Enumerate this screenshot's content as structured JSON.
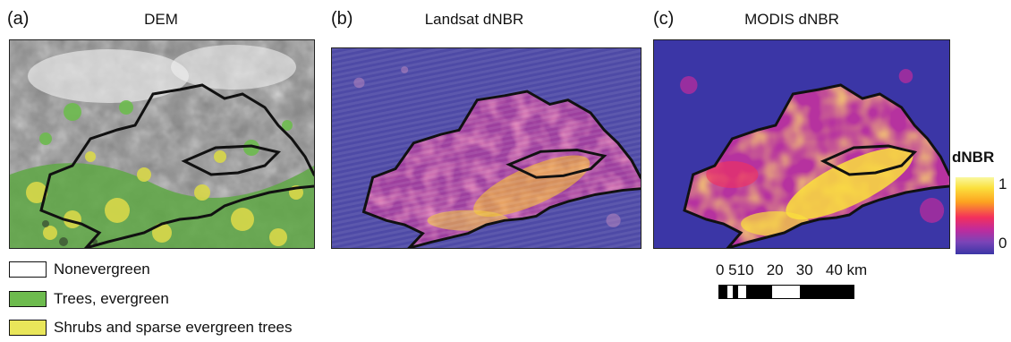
{
  "panels": [
    {
      "letter": "(a)",
      "title": "DEM"
    },
    {
      "letter": "(b)",
      "title": "Landsat dNBR"
    },
    {
      "letter": "(c)",
      "title": "MODIS dNBR"
    }
  ],
  "legend": {
    "items": [
      {
        "label": "Nonevergreen",
        "color": "#ffffff"
      },
      {
        "label": "Trees, evergreen",
        "color": "#6dbb4e"
      },
      {
        "label": "Shrubs and sparse evergreen trees",
        "color": "#e9e65a"
      }
    ]
  },
  "colorbar": {
    "title": "dNBR",
    "max_label": "1",
    "min_label": "0",
    "colors": [
      "#f9f8a0",
      "#fca320",
      "#f3305c",
      "#c02b9c",
      "#7b44b8",
      "#3b36a6"
    ]
  },
  "scale_bar": {
    "labels": "0 510   20   30   40 km"
  },
  "colors": {
    "fire_perimeter": "#111111",
    "modis_background": "#3b36a6",
    "landsat_background": "#4e4aa6"
  }
}
